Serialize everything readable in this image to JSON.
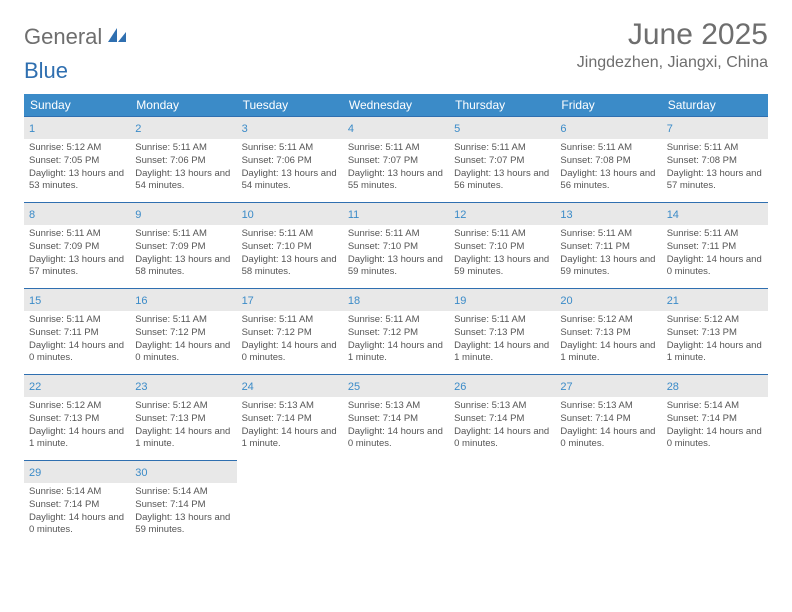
{
  "brand": {
    "part1": "General",
    "part2": "Blue"
  },
  "title": "June 2025",
  "location": "Jingdezhen, Jiangxi, China",
  "colors": {
    "header_bg": "#3b8bc8",
    "header_text": "#ffffff",
    "daynum_bg": "#e8e8e8",
    "daynum_color": "#3b8bc8",
    "border_top": "#2f6fb0",
    "body_text": "#555555",
    "title_color": "#6e6e6e",
    "brand_gray": "#6e6e6e",
    "brand_blue": "#2f6fb0"
  },
  "typography": {
    "title_fontsize": 30,
    "location_fontsize": 16,
    "header_fontsize": 12,
    "daynum_fontsize": 11,
    "info_fontsize": 9.5
  },
  "weekdays": [
    "Sunday",
    "Monday",
    "Tuesday",
    "Wednesday",
    "Thursday",
    "Friday",
    "Saturday"
  ],
  "days": [
    {
      "n": 1,
      "sunrise": "5:12 AM",
      "sunset": "7:05 PM",
      "daylight": "13 hours and 53 minutes."
    },
    {
      "n": 2,
      "sunrise": "5:11 AM",
      "sunset": "7:06 PM",
      "daylight": "13 hours and 54 minutes."
    },
    {
      "n": 3,
      "sunrise": "5:11 AM",
      "sunset": "7:06 PM",
      "daylight": "13 hours and 54 minutes."
    },
    {
      "n": 4,
      "sunrise": "5:11 AM",
      "sunset": "7:07 PM",
      "daylight": "13 hours and 55 minutes."
    },
    {
      "n": 5,
      "sunrise": "5:11 AM",
      "sunset": "7:07 PM",
      "daylight": "13 hours and 56 minutes."
    },
    {
      "n": 6,
      "sunrise": "5:11 AM",
      "sunset": "7:08 PM",
      "daylight": "13 hours and 56 minutes."
    },
    {
      "n": 7,
      "sunrise": "5:11 AM",
      "sunset": "7:08 PM",
      "daylight": "13 hours and 57 minutes."
    },
    {
      "n": 8,
      "sunrise": "5:11 AM",
      "sunset": "7:09 PM",
      "daylight": "13 hours and 57 minutes."
    },
    {
      "n": 9,
      "sunrise": "5:11 AM",
      "sunset": "7:09 PM",
      "daylight": "13 hours and 58 minutes."
    },
    {
      "n": 10,
      "sunrise": "5:11 AM",
      "sunset": "7:10 PM",
      "daylight": "13 hours and 58 minutes."
    },
    {
      "n": 11,
      "sunrise": "5:11 AM",
      "sunset": "7:10 PM",
      "daylight": "13 hours and 59 minutes."
    },
    {
      "n": 12,
      "sunrise": "5:11 AM",
      "sunset": "7:10 PM",
      "daylight": "13 hours and 59 minutes."
    },
    {
      "n": 13,
      "sunrise": "5:11 AM",
      "sunset": "7:11 PM",
      "daylight": "13 hours and 59 minutes."
    },
    {
      "n": 14,
      "sunrise": "5:11 AM",
      "sunset": "7:11 PM",
      "daylight": "14 hours and 0 minutes."
    },
    {
      "n": 15,
      "sunrise": "5:11 AM",
      "sunset": "7:11 PM",
      "daylight": "14 hours and 0 minutes."
    },
    {
      "n": 16,
      "sunrise": "5:11 AM",
      "sunset": "7:12 PM",
      "daylight": "14 hours and 0 minutes."
    },
    {
      "n": 17,
      "sunrise": "5:11 AM",
      "sunset": "7:12 PM",
      "daylight": "14 hours and 0 minutes."
    },
    {
      "n": 18,
      "sunrise": "5:11 AM",
      "sunset": "7:12 PM",
      "daylight": "14 hours and 1 minute."
    },
    {
      "n": 19,
      "sunrise": "5:11 AM",
      "sunset": "7:13 PM",
      "daylight": "14 hours and 1 minute."
    },
    {
      "n": 20,
      "sunrise": "5:12 AM",
      "sunset": "7:13 PM",
      "daylight": "14 hours and 1 minute."
    },
    {
      "n": 21,
      "sunrise": "5:12 AM",
      "sunset": "7:13 PM",
      "daylight": "14 hours and 1 minute."
    },
    {
      "n": 22,
      "sunrise": "5:12 AM",
      "sunset": "7:13 PM",
      "daylight": "14 hours and 1 minute."
    },
    {
      "n": 23,
      "sunrise": "5:12 AM",
      "sunset": "7:13 PM",
      "daylight": "14 hours and 1 minute."
    },
    {
      "n": 24,
      "sunrise": "5:13 AM",
      "sunset": "7:14 PM",
      "daylight": "14 hours and 1 minute."
    },
    {
      "n": 25,
      "sunrise": "5:13 AM",
      "sunset": "7:14 PM",
      "daylight": "14 hours and 0 minutes."
    },
    {
      "n": 26,
      "sunrise": "5:13 AM",
      "sunset": "7:14 PM",
      "daylight": "14 hours and 0 minutes."
    },
    {
      "n": 27,
      "sunrise": "5:13 AM",
      "sunset": "7:14 PM",
      "daylight": "14 hours and 0 minutes."
    },
    {
      "n": 28,
      "sunrise": "5:14 AM",
      "sunset": "7:14 PM",
      "daylight": "14 hours and 0 minutes."
    },
    {
      "n": 29,
      "sunrise": "5:14 AM",
      "sunset": "7:14 PM",
      "daylight": "14 hours and 0 minutes."
    },
    {
      "n": 30,
      "sunrise": "5:14 AM",
      "sunset": "7:14 PM",
      "daylight": "13 hours and 59 minutes."
    }
  ],
  "labels": {
    "sunrise": "Sunrise:",
    "sunset": "Sunset:",
    "daylight": "Daylight:"
  },
  "layout": {
    "first_day_column": 0,
    "total_days": 30,
    "columns": 7,
    "rows": 5
  }
}
